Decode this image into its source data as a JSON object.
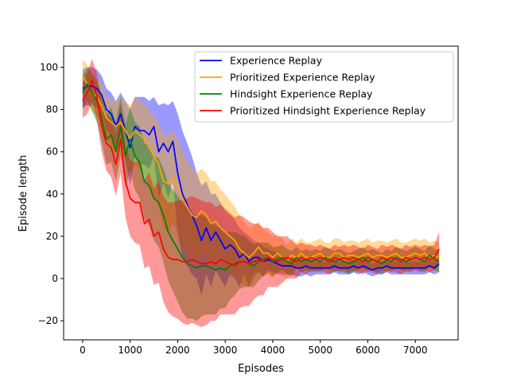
{
  "chart_data": {
    "type": "line",
    "xlabel": "Episodes",
    "ylabel": "Episode length",
    "xlim": [
      -400,
      7900
    ],
    "ylim": [
      -29,
      110
    ],
    "xticks": [
      0,
      1000,
      2000,
      3000,
      4000,
      5000,
      6000,
      7000
    ],
    "yticks": [
      -20,
      0,
      20,
      40,
      60,
      80,
      100
    ],
    "legend_position": "top-right",
    "grid": false,
    "x": [
      0,
      100,
      200,
      300,
      400,
      500,
      600,
      700,
      800,
      900,
      1000,
      1100,
      1200,
      1300,
      1400,
      1500,
      1600,
      1700,
      1800,
      1900,
      2000,
      2100,
      2200,
      2300,
      2400,
      2500,
      2600,
      2700,
      2800,
      2900,
      3000,
      3100,
      3200,
      3300,
      3400,
      3500,
      3600,
      3700,
      3800,
      3900,
      4000,
      4100,
      4200,
      4300,
      4400,
      4500,
      4600,
      4700,
      4800,
      4900,
      5000,
      5100,
      5200,
      5300,
      5400,
      5500,
      5600,
      5700,
      5800,
      5900,
      6000,
      6100,
      6200,
      6300,
      6400,
      6500,
      6600,
      6700,
      6800,
      6900,
      7000,
      7100,
      7200,
      7300,
      7400,
      7500
    ],
    "series": [
      {
        "name": "Experience Replay",
        "color": "#0000ff",
        "mean": [
          90,
          91,
          91,
          90,
          87,
          80,
          78,
          72,
          78,
          70,
          62,
          72,
          70,
          70,
          68,
          72,
          60,
          64,
          60,
          65,
          50,
          40,
          35,
          30,
          25,
          18,
          24,
          18,
          22,
          18,
          14,
          16,
          14,
          10,
          12,
          8,
          10,
          10,
          8,
          9,
          8,
          7,
          6,
          6,
          6,
          5,
          5,
          6,
          5,
          5,
          5,
          5,
          5,
          6,
          5,
          5,
          5,
          6,
          5,
          6,
          5,
          4,
          5,
          5,
          6,
          5,
          5,
          5,
          5,
          5,
          5,
          5,
          5,
          6,
          5,
          7
        ],
        "upper": [
          99,
          100,
          100,
          99,
          96,
          90,
          88,
          84,
          88,
          84,
          80,
          86,
          86,
          86,
          84,
          86,
          82,
          83,
          82,
          84,
          78,
          70,
          64,
          58,
          50,
          44,
          46,
          40,
          40,
          36,
          32,
          30,
          28,
          24,
          22,
          20,
          18,
          17,
          15,
          14,
          13,
          12,
          10,
          10,
          10,
          9,
          9,
          10,
          9,
          8,
          8,
          8,
          8,
          9,
          8,
          8,
          8,
          9,
          8,
          9,
          8,
          7,
          8,
          8,
          9,
          8,
          8,
          8,
          8,
          8,
          8,
          8,
          8,
          9,
          8,
          11
        ],
        "lower": [
          81,
          82,
          82,
          81,
          78,
          70,
          68,
          60,
          68,
          56,
          44,
          58,
          54,
          54,
          52,
          58,
          38,
          45,
          38,
          46,
          22,
          10,
          6,
          2,
          0,
          -8,
          2,
          -4,
          4,
          0,
          -4,
          2,
          0,
          -4,
          2,
          -4,
          2,
          3,
          1,
          4,
          3,
          2,
          2,
          2,
          2,
          1,
          1,
          2,
          1,
          2,
          2,
          2,
          2,
          3,
          2,
          2,
          2,
          3,
          2,
          3,
          2,
          1,
          2,
          2,
          3,
          2,
          2,
          2,
          2,
          2,
          2,
          2,
          2,
          3,
          2,
          3
        ]
      },
      {
        "name": "Prioritized Experience Replay",
        "color": "#ffa500",
        "mean": [
          96,
          92,
          88,
          86,
          82,
          76,
          74,
          72,
          74,
          70,
          66,
          70,
          68,
          66,
          62,
          58,
          54,
          46,
          45,
          48,
          44,
          38,
          34,
          30,
          29,
          32,
          30,
          26,
          27,
          24,
          22,
          20,
          18,
          14,
          12,
          10,
          12,
          15,
          12,
          12,
          10,
          12,
          10,
          8,
          11,
          10,
          12,
          10,
          10,
          11,
          12,
          10,
          10,
          12,
          12,
          10,
          11,
          11,
          10,
          11,
          12,
          10,
          11,
          11,
          10,
          11,
          12,
          10,
          10,
          11,
          12,
          11,
          12,
          10,
          11,
          10
        ],
        "upper": [
          104,
          101,
          97,
          95,
          92,
          86,
          85,
          84,
          86,
          84,
          82,
          86,
          84,
          83,
          80,
          77,
          74,
          68,
          68,
          70,
          66,
          60,
          56,
          52,
          50,
          52,
          50,
          46,
          46,
          42,
          40,
          37,
          34,
          30,
          27,
          24,
          25,
          27,
          23,
          22,
          20,
          21,
          19,
          16,
          19,
          17,
          19,
          17,
          17,
          18,
          19,
          17,
          17,
          19,
          19,
          17,
          18,
          18,
          17,
          18,
          19,
          17,
          18,
          18,
          17,
          18,
          19,
          17,
          17,
          18,
          19,
          18,
          19,
          17,
          18,
          17
        ],
        "lower": [
          88,
          83,
          79,
          77,
          72,
          66,
          63,
          60,
          62,
          56,
          50,
          54,
          52,
          49,
          44,
          39,
          34,
          24,
          22,
          26,
          22,
          16,
          12,
          8,
          8,
          12,
          10,
          6,
          8,
          6,
          4,
          3,
          2,
          -2,
          -3,
          -4,
          -1,
          3,
          1,
          2,
          0,
          3,
          1,
          0,
          3,
          3,
          5,
          3,
          3,
          4,
          5,
          3,
          3,
          5,
          5,
          3,
          4,
          4,
          3,
          4,
          5,
          3,
          4,
          4,
          3,
          4,
          5,
          3,
          3,
          4,
          5,
          4,
          5,
          3,
          4,
          3
        ]
      },
      {
        "name": "Hindsight Experience Replay",
        "color": "#008000",
        "mean": [
          88,
          92,
          88,
          84,
          76,
          66,
          68,
          60,
          72,
          58,
          66,
          58,
          55,
          46,
          44,
          38,
          36,
          30,
          22,
          18,
          14,
          10,
          7,
          6,
          5,
          6,
          6,
          5,
          4,
          5,
          4,
          6,
          7,
          8,
          8,
          7,
          6,
          8,
          9,
          10,
          8,
          9,
          10,
          8,
          7,
          10,
          8,
          9,
          8,
          9,
          8,
          10,
          9,
          8,
          9,
          8,
          7,
          8,
          9,
          10,
          8,
          9,
          8,
          7,
          9,
          8,
          10,
          9,
          8,
          9,
          10,
          9,
          8,
          11,
          9,
          8
        ],
        "upper": [
          96,
          100,
          97,
          94,
          87,
          78,
          81,
          74,
          86,
          73,
          81,
          74,
          72,
          64,
          63,
          58,
          57,
          52,
          45,
          42,
          39,
          36,
          33,
          31,
          30,
          30,
          29,
          27,
          25,
          24,
          22,
          22,
          22,
          21,
          20,
          18,
          16,
          17,
          17,
          17,
          15,
          15,
          16,
          14,
          13,
          15,
          13,
          14,
          13,
          14,
          13,
          15,
          14,
          13,
          14,
          13,
          12,
          13,
          14,
          15,
          13,
          14,
          13,
          12,
          14,
          13,
          15,
          14,
          13,
          14,
          15,
          14,
          13,
          16,
          14,
          13
        ],
        "lower": [
          80,
          84,
          79,
          74,
          65,
          54,
          55,
          46,
          58,
          43,
          51,
          42,
          38,
          28,
          25,
          18,
          15,
          8,
          -1,
          -6,
          -11,
          -16,
          -19,
          -19,
          -20,
          -18,
          -17,
          -17,
          -17,
          -14,
          -14,
          -10,
          -8,
          -5,
          -4,
          -4,
          -4,
          -1,
          1,
          3,
          1,
          3,
          4,
          2,
          1,
          5,
          3,
          4,
          3,
          4,
          3,
          5,
          4,
          3,
          4,
          3,
          2,
          3,
          4,
          5,
          3,
          4,
          3,
          2,
          4,
          3,
          5,
          4,
          3,
          4,
          5,
          4,
          3,
          6,
          4,
          3
        ]
      },
      {
        "name": "Prioritized Hindsight Experience Replay",
        "color": "#ff0000",
        "mean": [
          84,
          88,
          94,
          86,
          72,
          64,
          62,
          54,
          66,
          46,
          38,
          36,
          36,
          26,
          28,
          20,
          22,
          14,
          10,
          9,
          9,
          8,
          8,
          9,
          8,
          7,
          7,
          8,
          7,
          9,
          8,
          7,
          6,
          8,
          8,
          7,
          8,
          9,
          8,
          10,
          9,
          8,
          9,
          10,
          9,
          8,
          10,
          9,
          10,
          9,
          10,
          9,
          8,
          10,
          9,
          10,
          9,
          10,
          9,
          8,
          10,
          9,
          8,
          10,
          9,
          10,
          9,
          8,
          10,
          9,
          10,
          9,
          10,
          9,
          10,
          14
        ],
        "upper": [
          92,
          98,
          104,
          97,
          84,
          77,
          76,
          69,
          82,
          63,
          56,
          55,
          56,
          47,
          50,
          43,
          46,
          39,
          36,
          36,
          37,
          37,
          38,
          39,
          38,
          37,
          36,
          36,
          34,
          35,
          33,
          31,
          29,
          30,
          29,
          27,
          26,
          26,
          24,
          24,
          22,
          20,
          20,
          20,
          18,
          16,
          17,
          16,
          16,
          15,
          16,
          15,
          14,
          16,
          15,
          16,
          15,
          16,
          15,
          14,
          16,
          15,
          14,
          16,
          15,
          16,
          15,
          14,
          16,
          15,
          16,
          15,
          16,
          15,
          16,
          22
        ],
        "lower": [
          76,
          78,
          84,
          75,
          60,
          51,
          48,
          39,
          50,
          29,
          20,
          17,
          16,
          5,
          6,
          -3,
          -2,
          -11,
          -16,
          -18,
          -19,
          -21,
          -22,
          -21,
          -22,
          -23,
          -22,
          -20,
          -20,
          -17,
          -17,
          -17,
          -17,
          -14,
          -13,
          -13,
          -10,
          -8,
          -8,
          -4,
          -4,
          -4,
          -2,
          0,
          0,
          0,
          3,
          2,
          4,
          3,
          4,
          3,
          2,
          4,
          3,
          4,
          3,
          4,
          3,
          2,
          4,
          3,
          2,
          4,
          3,
          4,
          3,
          2,
          4,
          3,
          4,
          3,
          4,
          3,
          4,
          6
        ]
      }
    ]
  }
}
